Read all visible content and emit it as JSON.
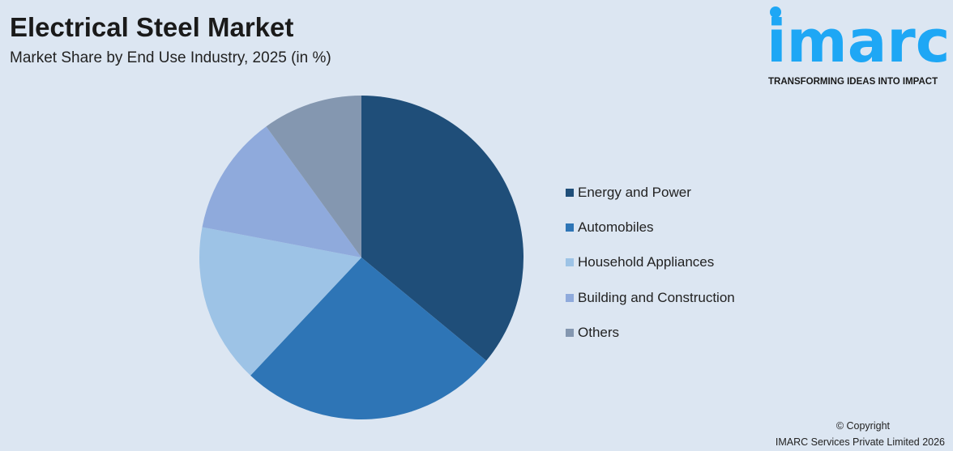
{
  "header": {
    "title": "Electrical Steel Market",
    "subtitle": "Market Share by End Use Industry, 2025 (in %)"
  },
  "logo": {
    "word": "imarc",
    "tagline": "TRANSFORMING IDEAS INTO IMPACT",
    "color": "#1ea7f5"
  },
  "chart_data": {
    "type": "pie",
    "title": "Electrical Steel Market",
    "subtitle": "Market Share by End Use Industry, 2025 (in %)",
    "categories": [
      "Energy and Power",
      "Automobiles",
      "Household Appliances",
      "Building and Construction",
      "Others"
    ],
    "values": [
      36,
      26,
      16,
      12,
      10
    ],
    "colors": [
      "#1f4e79",
      "#2e75b6",
      "#9dc3e6",
      "#8faadc",
      "#8497b0"
    ],
    "start_angle": "top, clockwise",
    "legend_position": "right"
  },
  "footer": {
    "copyright": "© Copyright",
    "company": "IMARC Services Private Limited 2026"
  }
}
